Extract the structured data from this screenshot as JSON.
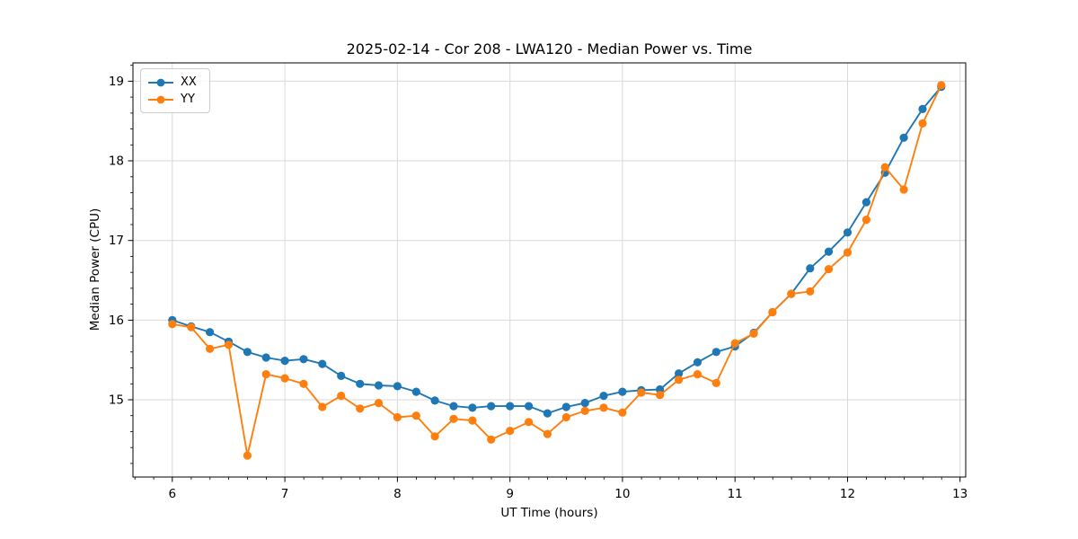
{
  "figure": {
    "title": "2025-02-14 - Cor 208 - LWA120 - Median Power vs. Time",
    "xlabel": "UT Time (hours)",
    "ylabel": "Median Power (CPU)",
    "background": "#ffffff"
  },
  "legend": {
    "position": "upper-left",
    "items": [
      {
        "label": "XX",
        "color": "#1f77b4"
      },
      {
        "label": "YY",
        "color": "#ff7f0e"
      }
    ]
  },
  "axes": {
    "xlim": [
      5.65,
      13.05
    ],
    "ylim": [
      14.03,
      19.23
    ],
    "x_major_ticks": [
      6,
      7,
      8,
      9,
      10,
      11,
      12,
      13
    ],
    "y_major_ticks": [
      15,
      16,
      17,
      18,
      19
    ],
    "x_minor_step": 0.1667,
    "y_minor_step": 0.2,
    "grid": true,
    "grid_color": "#d9d9d9",
    "spine_color": "#000000",
    "tick_color": "#000000"
  },
  "chart_data": {
    "type": "line",
    "title": "2025-02-14 - Cor 208 - LWA120 - Median Power vs. Time",
    "xlabel": "UT Time (hours)",
    "ylabel": "Median Power (CPU)",
    "xlim": [
      5.65,
      13.05
    ],
    "ylim": [
      14.03,
      19.23
    ],
    "legend_position": "upper-left",
    "marker": "o",
    "x": [
      6.0,
      6.167,
      6.333,
      6.5,
      6.667,
      6.833,
      7.0,
      7.167,
      7.333,
      7.5,
      7.667,
      7.833,
      8.0,
      8.167,
      8.333,
      8.5,
      8.667,
      8.833,
      9.0,
      9.167,
      9.333,
      9.5,
      9.667,
      9.833,
      10.0,
      10.167,
      10.333,
      10.5,
      10.667,
      10.833,
      11.0,
      11.167,
      11.333,
      11.5,
      11.667,
      11.833,
      12.0,
      12.167,
      12.333,
      12.5,
      12.667,
      12.833
    ],
    "series": [
      {
        "name": "XX",
        "color": "#1f77b4",
        "values": [
          16.0,
          15.92,
          15.85,
          15.73,
          15.6,
          15.53,
          15.49,
          15.51,
          15.45,
          15.3,
          15.2,
          15.18,
          15.17,
          15.1,
          14.99,
          14.92,
          14.9,
          14.92,
          14.92,
          14.92,
          14.83,
          14.91,
          14.96,
          15.05,
          15.1,
          15.12,
          15.13,
          15.33,
          15.47,
          15.6,
          15.67,
          15.84,
          16.1,
          16.33,
          16.65,
          16.86,
          17.1,
          17.48,
          17.85,
          18.29,
          18.65,
          18.93
        ]
      },
      {
        "name": "YY",
        "color": "#ff7f0e",
        "values": [
          15.95,
          15.91,
          15.64,
          15.69,
          14.3,
          15.32,
          15.27,
          15.2,
          14.91,
          15.05,
          14.89,
          14.96,
          14.78,
          14.8,
          14.54,
          14.76,
          14.74,
          14.5,
          14.61,
          14.72,
          14.57,
          14.78,
          14.86,
          14.9,
          14.84,
          15.09,
          15.06,
          15.25,
          15.32,
          15.21,
          15.71,
          15.83,
          16.1,
          16.33,
          16.36,
          16.64,
          16.85,
          17.26,
          17.92,
          17.64,
          18.47,
          18.95
        ]
      }
    ]
  }
}
